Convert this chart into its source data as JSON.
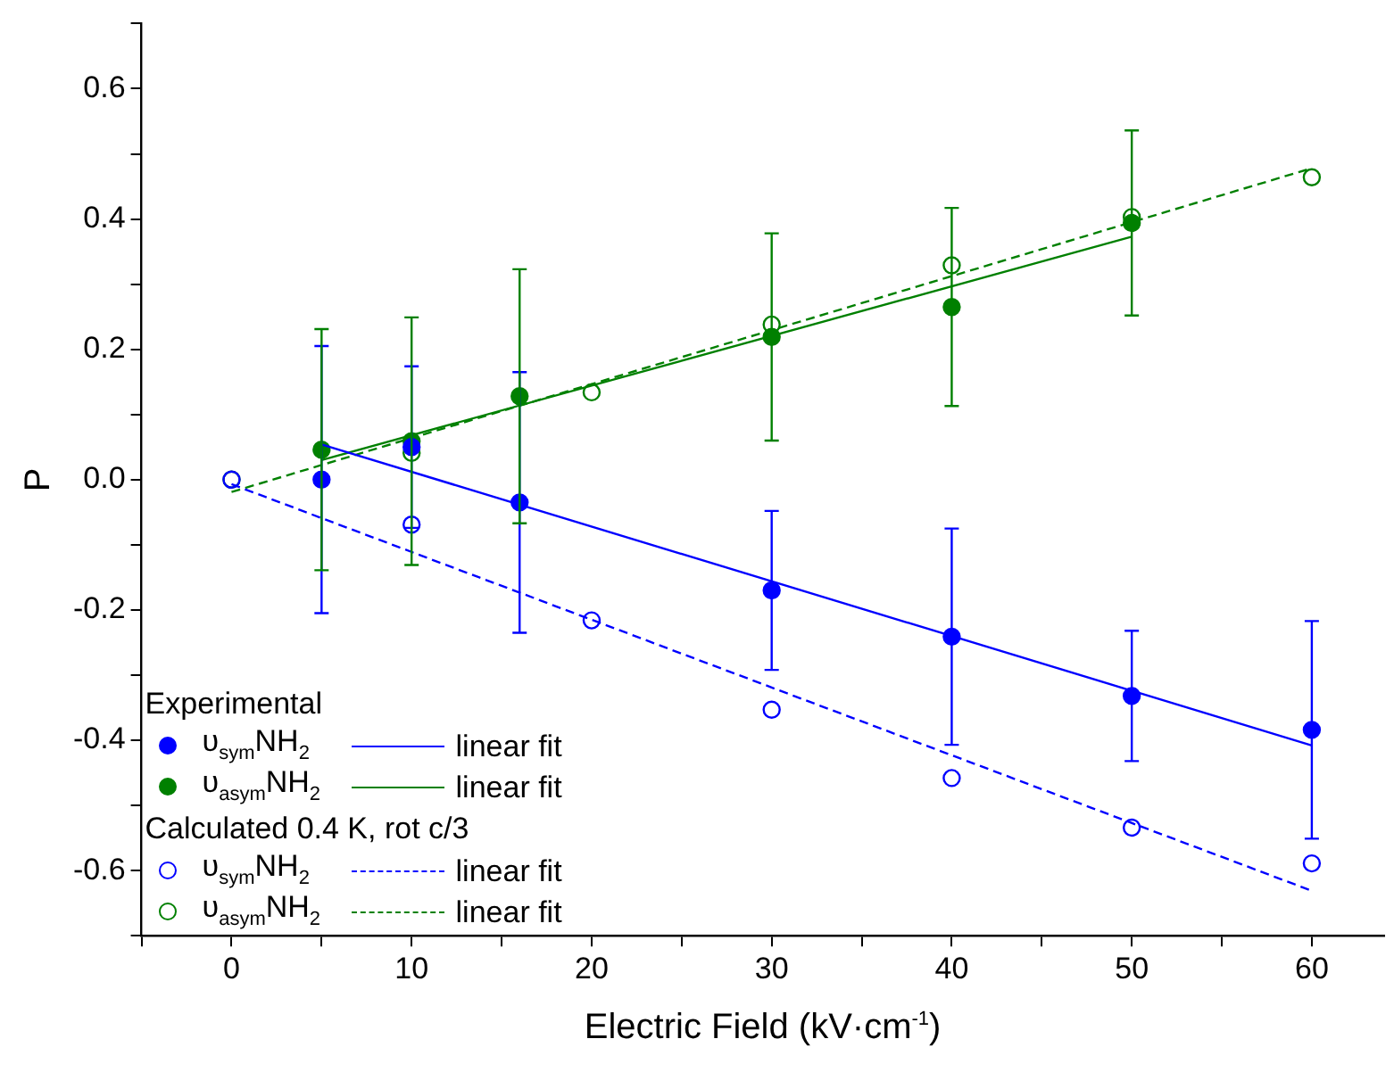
{
  "chart_data": {
    "type": "scatter",
    "xlabel": "Electric Field (kV·cm$^{-1}$)",
    "ylabel": "P",
    "xlim": [
      -5,
      64
    ],
    "ylim": [
      -0.7,
      0.7
    ],
    "xticks": [
      {
        "value": -5,
        "label": null
      },
      0,
      {
        "value": 5,
        "label": null
      },
      10,
      {
        "value": 15,
        "label": null
      },
      20,
      {
        "value": 25,
        "label": null
      },
      30,
      {
        "value": 35,
        "label": null
      },
      40,
      {
        "value": 45,
        "label": null
      },
      50,
      {
        "value": 55,
        "label": null
      },
      60
    ],
    "yticks": [
      {
        "value": -0.7,
        "label": null
      },
      -0.6,
      {
        "value": -0.5,
        "label": null
      },
      -0.4,
      {
        "value": -0.3,
        "label": null
      },
      -0.2,
      {
        "value": -0.1,
        "label": null
      },
      {
        "value": 0,
        "label": "0.0"
      },
      {
        "value": 0.1,
        "label": null
      },
      0.2,
      {
        "value": 0.3,
        "label": null
      },
      0.4,
      {
        "value": 0.5,
        "label": null
      },
      0.6,
      {
        "value": 0.7,
        "label": null
      }
    ],
    "grid": false,
    "legend": "bottom left",
    "annotations": [
      "Experimental",
      "Calculated 0.4 K, rot c/3"
    ],
    "series": [
      {
        "name": "υ$_{sym}$NH$_{2}$",
        "color": "#0000ff",
        "marker": "circle",
        "x": [
          5,
          10,
          16,
          30,
          40,
          50,
          60
        ],
        "values": [
          0.0,
          0.05,
          -0.035,
          -0.17,
          -0.241,
          -0.332,
          -0.384
        ],
        "errors": [
          0.205,
          0.124,
          0.2,
          0.122,
          0.166,
          0.1,
          0.167
        ]
      },
      {
        "type": "line",
        "name": "linear fit",
        "color": "#0000ff",
        "marker": "none",
        "line_style": "solid",
        "x": [
          5,
          60
        ],
        "values": [
          0.054,
          -0.408
        ]
      },
      {
        "name": "υ$_{asym}$NH$_{2}$",
        "color": "#008000",
        "marker": "circle",
        "x": [
          5,
          10,
          16,
          30,
          40,
          50
        ],
        "values": [
          0.046,
          0.059,
          0.128,
          0.219,
          0.265,
          0.394
        ],
        "errors": [
          0.185,
          0.19,
          0.195,
          0.159,
          0.152,
          0.142
        ]
      },
      {
        "type": "line",
        "name": "linear fit",
        "color": "#008000",
        "marker": "none",
        "line_style": "solid",
        "x": [
          5,
          50
        ],
        "values": [
          0.03,
          0.373
        ]
      },
      {
        "name": "υ$_{sym}$NH$_{2}$",
        "color": "#0000ff",
        "marker": "circle",
        "x": [
          0,
          10,
          20,
          30,
          40,
          50,
          60
        ],
        "values": [
          0.0,
          -0.069,
          -0.216,
          -0.353,
          -0.458,
          -0.534,
          -0.589
        ]
      },
      {
        "type": "line",
        "name": "linear fit",
        "color": "#0000ff",
        "marker": "none",
        "line_style": "dashed",
        "x": [
          0,
          60
        ],
        "values": [
          -0.007,
          -0.631
        ]
      },
      {
        "name": "υ$_{asym}$NH$_{2}$",
        "color": "#008000",
        "marker": "circle",
        "x": [
          0,
          10,
          20,
          30,
          40,
          50,
          60
        ],
        "values": [
          0.0,
          0.041,
          0.134,
          0.238,
          0.329,
          0.403,
          0.464
        ]
      },
      {
        "type": "line",
        "name": "linear fit",
        "color": "#008000",
        "marker": "none",
        "line_style": "dashed",
        "x": [
          0,
          60
        ],
        "values": [
          -0.019,
          0.478
        ]
      }
    ]
  }
}
